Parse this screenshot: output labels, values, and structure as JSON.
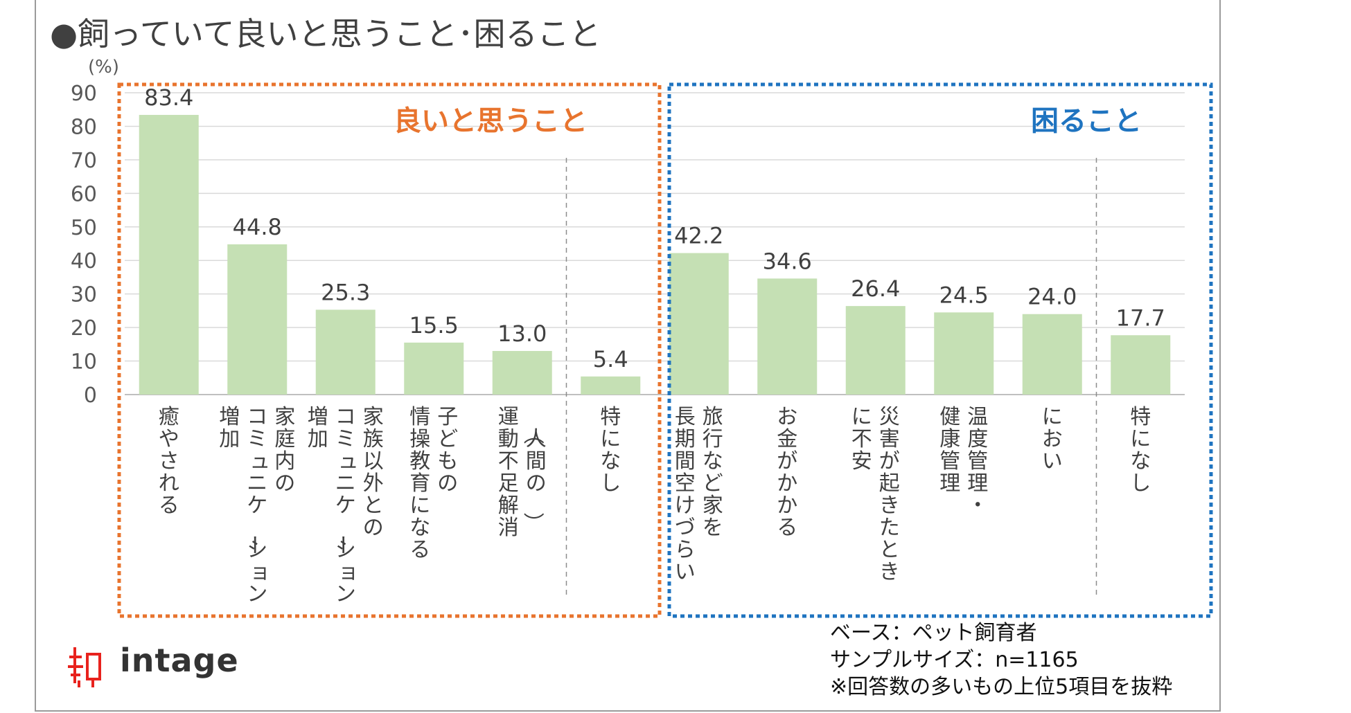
{
  "title": "●飼っていて良いと思うこと･困ること",
  "chart_data": {
    "type": "bar",
    "title": "●飼っていて良いと思うこと･困ること",
    "ylabel": "(%)",
    "ylim": [
      0,
      90
    ],
    "yticks": [
      "0",
      "10",
      "20",
      "30",
      "40",
      "50",
      "60",
      "70",
      "80",
      "90"
    ],
    "grid": true,
    "groups": [
      {
        "label": "良いと思うこと",
        "color": "#e8742e",
        "bars": [
          {
            "label": "癒やされる",
            "value": 83.4,
            "value_label": "83.4"
          },
          {
            "label": "家庭内の\nコミュニケーション\n増加",
            "value": 44.8,
            "value_label": "44.8"
          },
          {
            "label": "家族以外との\nコミュニケーション\n増加",
            "value": 25.3,
            "value_label": "25.3"
          },
          {
            "label": "子どもの\n情操教育になる",
            "value": 15.5,
            "value_label": "15.5"
          },
          {
            "label": "（人間の）\n運動不足解消",
            "value": 13.0,
            "value_label": "13.0"
          },
          {
            "label": "特になし",
            "value": 5.4,
            "value_label": "5.4"
          }
        ]
      },
      {
        "label": "困ること",
        "color": "#1f74c0",
        "bars": [
          {
            "label": "旅行など家を\n長期間空けづらい",
            "value": 42.2,
            "value_label": "42.2"
          },
          {
            "label": "お金がかかる",
            "value": 34.6,
            "value_label": "34.6"
          },
          {
            "label": "災害が起きたとき\nに不安",
            "value": 26.4,
            "value_label": "26.4"
          },
          {
            "label": "温度管理・\n健康管理",
            "value": 24.5,
            "value_label": "24.5"
          },
          {
            "label": "におい",
            "value": 24.0,
            "value_label": "24.0"
          },
          {
            "label": "特になし",
            "value": 17.7,
            "value_label": "17.7"
          }
        ]
      }
    ],
    "bar_color": "#c5e0b4"
  },
  "notes": {
    "base": "ベース：ペット飼育者",
    "sample": "サンプルサイズ：n=1165",
    "footnote": "※回答数の多いもの上位5項目を抜粋"
  },
  "logo": {
    "text": "intage",
    "glyph": "知"
  }
}
